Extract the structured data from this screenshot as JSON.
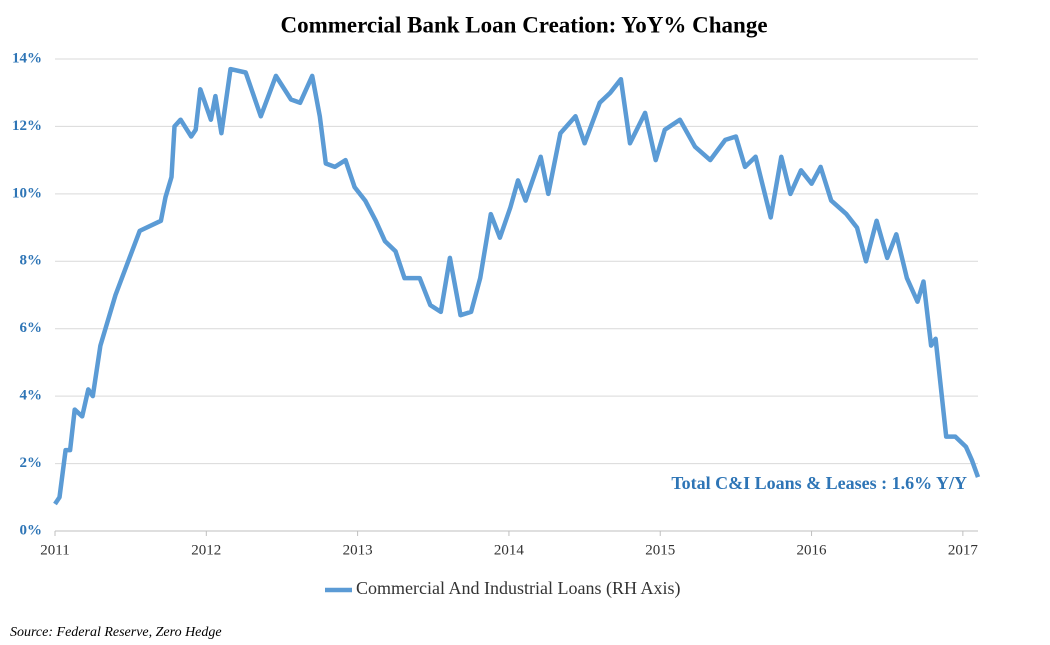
{
  "chart_data": {
    "type": "line",
    "title": "Commercial Bank Loan Creation: YoY% Change",
    "annotation": "Total C&I Loans & Leases : 1.6% Y/Y",
    "source": "Source: Federal Reserve, Zero Hedge",
    "x": [
      2011.0,
      2011.03,
      2011.07,
      2011.1,
      2011.13,
      2011.18,
      2011.22,
      2011.25,
      2011.3,
      2011.4,
      2011.56,
      2011.7,
      2011.73,
      2011.77,
      2011.79,
      2011.83,
      2011.9,
      2011.93,
      2011.96,
      2012.03,
      2012.06,
      2012.1,
      2012.16,
      2012.26,
      2012.36,
      2012.46,
      2012.56,
      2012.62,
      2012.7,
      2012.75,
      2012.79,
      2012.85,
      2012.92,
      2012.98,
      2013.05,
      2013.12,
      2013.18,
      2013.25,
      2013.31,
      2013.41,
      2013.48,
      2013.55,
      2013.61,
      2013.68,
      2013.75,
      2013.81,
      2013.88,
      2013.94,
      2014.01,
      2014.06,
      2014.11,
      2014.21,
      2014.26,
      2014.34,
      2014.44,
      2014.5,
      2014.6,
      2014.67,
      2014.74,
      2014.8,
      2014.9,
      2014.97,
      2015.03,
      2015.13,
      2015.23,
      2015.33,
      2015.43,
      2015.5,
      2015.56,
      2015.63,
      2015.73,
      2015.8,
      2015.86,
      2015.93,
      2016.0,
      2016.06,
      2016.13,
      2016.23,
      2016.3,
      2016.36,
      2016.43,
      2016.5,
      2016.56,
      2016.63,
      2016.7,
      2016.74,
      2016.79,
      2016.82,
      2016.89,
      2016.95,
      2017.02,
      2017.06,
      2017.1
    ],
    "series": [
      {
        "name": "Commercial And Industrial Loans (RH Axis)",
        "color": "#5b9bd5",
        "values": [
          0.8,
          1.0,
          2.4,
          2.4,
          3.6,
          3.4,
          4.2,
          4.0,
          5.5,
          7.0,
          8.9,
          9.2,
          9.9,
          10.5,
          12.0,
          12.2,
          11.7,
          11.9,
          13.1,
          12.2,
          12.9,
          11.8,
          13.7,
          13.6,
          12.3,
          13.5,
          12.8,
          12.7,
          13.5,
          12.3,
          10.9,
          10.8,
          11.0,
          10.2,
          9.8,
          9.2,
          8.6,
          8.3,
          7.5,
          7.5,
          6.7,
          6.5,
          8.1,
          6.4,
          6.5,
          7.5,
          9.4,
          8.7,
          9.6,
          10.4,
          9.8,
          11.1,
          10.0,
          11.8,
          12.3,
          11.5,
          12.7,
          13.0,
          13.4,
          11.5,
          12.4,
          11.0,
          11.9,
          12.2,
          11.4,
          11.0,
          11.6,
          11.7,
          10.8,
          11.1,
          9.3,
          11.1,
          10.0,
          10.7,
          10.3,
          10.8,
          9.8,
          9.4,
          9.0,
          8.0,
          9.2,
          8.1,
          8.8,
          7.5,
          6.8,
          7.4,
          5.5,
          5.7,
          2.8,
          2.8,
          2.5,
          2.1,
          1.6
        ]
      }
    ],
    "xlim": [
      2011.0,
      2017.1
    ],
    "xticks": [
      2011,
      2012,
      2013,
      2014,
      2015,
      2016,
      2017
    ],
    "ylim": [
      0,
      14
    ],
    "yticks": [
      {
        "value": 0,
        "label": "0%"
      },
      {
        "value": 2,
        "label": "2%"
      },
      {
        "value": 4,
        "label": "4%"
      },
      {
        "value": 6,
        "label": "6%"
      },
      {
        "value": 8,
        "label": "8%"
      },
      {
        "value": 10,
        "label": "10%"
      },
      {
        "value": 12,
        "label": "12%"
      },
      {
        "value": 14,
        "label": "14%"
      }
    ],
    "grid": true,
    "legend": "bottom"
  }
}
